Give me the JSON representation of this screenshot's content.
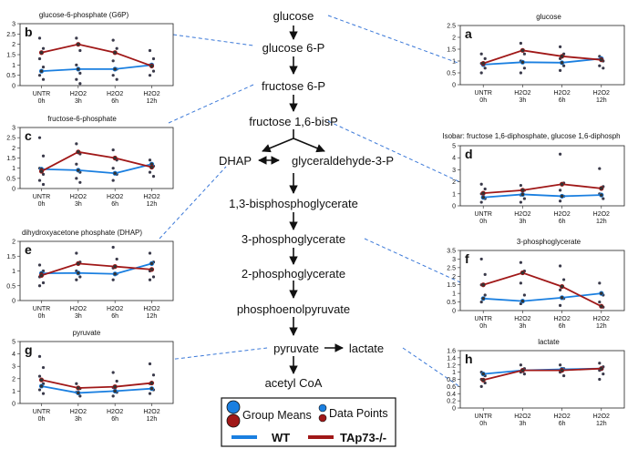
{
  "pathway": {
    "nodes": [
      {
        "id": "glucose",
        "label": "glucose"
      },
      {
        "id": "g6p",
        "label": "glucose 6-P"
      },
      {
        "id": "f6p",
        "label": "fructose 6-P"
      },
      {
        "id": "f16bp",
        "label": "fructose 1,6-bisP"
      },
      {
        "id": "dhap",
        "label": "DHAP"
      },
      {
        "id": "g3p",
        "label": "glyceraldehyde-3-P"
      },
      {
        "id": "bpg",
        "label": "1,3-bisphosphoglycerate"
      },
      {
        "id": "pg3",
        "label": "3-phosphoglycerate"
      },
      {
        "id": "pg2",
        "label": "2-phosphoglycerate"
      },
      {
        "id": "pep",
        "label": "phosphoenolpyruvate"
      },
      {
        "id": "pyr",
        "label": "pyruvate"
      },
      {
        "id": "lac",
        "label": "lactate"
      },
      {
        "id": "acoa",
        "label": "acetyl CoA"
      }
    ]
  },
  "legend": {
    "group_means": "Group Means",
    "data_points": "Data Points",
    "wt": "WT",
    "ko": "TAp73-/-"
  },
  "colors": {
    "wt": "#1a7fe0",
    "ko": "#a01818",
    "points": "#3a3a4a",
    "connector": "#3a78d8"
  },
  "chart_data": [
    {
      "panel": "b",
      "title": "glucose-6-phosphate (G6P)",
      "type": "line",
      "categories": [
        "UNTR|0h",
        "H2O2|3h",
        "H2O2|6h",
        "H2O2|12h"
      ],
      "yticks": [
        "0",
        "0.5",
        "1",
        "1.5",
        "2",
        "2.5",
        "3"
      ],
      "ylim": [
        0,
        3
      ],
      "series": [
        {
          "name": "WT",
          "values": [
            0.7,
            0.8,
            0.8,
            1.0
          ]
        },
        {
          "name": "TAp73-/-",
          "values": [
            1.6,
            2.0,
            1.6,
            0.95
          ]
        }
      ],
      "points": [
        [
          2.3,
          1.8,
          1.3,
          0.9,
          0.5,
          0.3
        ],
        [
          2.3,
          1.7,
          1.0,
          0.6,
          0.3,
          0.1
        ],
        [
          2.2,
          1.8,
          1.2,
          0.8,
          0.5,
          0.3
        ],
        [
          1.7,
          1.3,
          1.0,
          0.7,
          0.5
        ]
      ]
    },
    {
      "panel": "a",
      "title": "glucose",
      "type": "line",
      "categories": [
        "UNTR|0h",
        "H2O2|3h",
        "H2O2|6h",
        "H2O2|12h"
      ],
      "yticks": [
        "0",
        "0.5",
        "1",
        "1.5",
        "2",
        "2.5"
      ],
      "ylim": [
        0,
        2.5
      ],
      "series": [
        {
          "name": "WT",
          "values": [
            0.85,
            0.95,
            0.93,
            1.1
          ]
        },
        {
          "name": "TAp73-/-",
          "values": [
            0.9,
            1.45,
            1.2,
            1.05
          ]
        }
      ],
      "points": [
        [
          1.3,
          1.1,
          0.9,
          0.7,
          0.5
        ],
        [
          1.75,
          1.3,
          1.0,
          0.7,
          0.5
        ],
        [
          1.6,
          1.3,
          1.1,
          0.8,
          0.6
        ],
        [
          1.2,
          1.0,
          0.8,
          0.7
        ]
      ]
    },
    {
      "panel": "c",
      "title": "fructose-6-phosphate",
      "type": "line",
      "categories": [
        "UNTR|0h",
        "H2O2|3h",
        "H2O2|6h",
        "H2O2|12h"
      ],
      "yticks": [
        "0",
        "0.5",
        "1",
        "1.5",
        "2",
        "2.5",
        "3"
      ],
      "ylim": [
        0,
        3
      ],
      "series": [
        {
          "name": "WT",
          "values": [
            0.95,
            0.9,
            0.75,
            1.2
          ]
        },
        {
          "name": "TAp73-/-",
          "values": [
            0.85,
            1.8,
            1.5,
            1.05
          ]
        }
      ],
      "points": [
        [
          2.5,
          1.6,
          1.0,
          0.7,
          0.4,
          0.2
        ],
        [
          2.2,
          1.7,
          1.2,
          0.8,
          0.5,
          0.3
        ],
        [
          1.9,
          1.4,
          1.0,
          0.7,
          0.4
        ],
        [
          1.4,
          1.1,
          0.8,
          0.6
        ]
      ]
    },
    {
      "panel": "d",
      "title": "Isobar: fructose 1,6-diphosphate, glucose 1,6-diphosph",
      "type": "line",
      "categories": [
        "UNTR|0h",
        "H2O2|3h",
        "H2O2|6h",
        "H2O2|12h"
      ],
      "yticks": [
        "0",
        "1",
        "2",
        "3",
        "4",
        "5"
      ],
      "ylim": [
        0,
        5
      ],
      "series": [
        {
          "name": "WT",
          "values": [
            0.7,
            0.95,
            0.8,
            0.9
          ]
        },
        {
          "name": "TAp73-/-",
          "values": [
            1.05,
            1.3,
            1.8,
            1.45
          ]
        }
      ],
      "points": [
        [
          1.8,
          1.4,
          1.0,
          0.6,
          0.3
        ],
        [
          1.7,
          1.3,
          0.9,
          0.6,
          0.3
        ],
        [
          4.3,
          1.9,
          1.3,
          0.8,
          0.4
        ],
        [
          3.1,
          1.6,
          1.0,
          0.6
        ]
      ]
    },
    {
      "panel": "e",
      "title": "dihydroxyacetone phosphate (DHAP)",
      "type": "line",
      "categories": [
        "UNTR|0h",
        "H2O2|3h",
        "H2O2|6h",
        "H2O2|12h"
      ],
      "yticks": [
        "0",
        "0.5",
        "1",
        "1.5",
        "2"
      ],
      "ylim": [
        0,
        2
      ],
      "series": [
        {
          "name": "WT",
          "values": [
            0.92,
            0.93,
            0.9,
            1.25
          ]
        },
        {
          "name": "TAp73-/-",
          "values": [
            0.85,
            1.25,
            1.15,
            1.05
          ]
        }
      ],
      "points": [
        [
          1.2,
          1.0,
          0.8,
          0.6,
          0.5
        ],
        [
          1.6,
          1.3,
          1.0,
          0.8,
          0.7
        ],
        [
          1.8,
          1.4,
          1.1,
          0.9,
          0.7
        ],
        [
          1.6,
          1.3,
          1.0,
          0.8,
          0.7
        ]
      ]
    },
    {
      "panel": "f",
      "title": "3-phosphoglycerate",
      "type": "line",
      "categories": [
        "UNTR|0h",
        "H2O2|3h",
        "H2O2|6h",
        "H2O2|12h"
      ],
      "yticks": [
        "0",
        "0.5",
        "1",
        "1.5",
        "2",
        "2.5",
        "3",
        "3.5"
      ],
      "ylim": [
        0,
        3.5
      ],
      "series": [
        {
          "name": "WT",
          "values": [
            0.7,
            0.55,
            0.75,
            1.0
          ]
        },
        {
          "name": "TAp73-/-",
          "values": [
            1.5,
            2.2,
            1.4,
            0.25
          ]
        }
      ],
      "points": [
        [
          3.0,
          2.1,
          1.5,
          0.9,
          0.5
        ],
        [
          2.8,
          2.3,
          1.6,
          0.9,
          0.4
        ],
        [
          2.6,
          1.8,
          1.2,
          0.7,
          0.3
        ],
        [
          1.6,
          0.9,
          0.5,
          0.2
        ]
      ]
    },
    {
      "panel": "g",
      "title": "pyruvate",
      "type": "line",
      "categories": [
        "UNTR|0h",
        "H2O2|3h",
        "H2O2|6h",
        "H2O2|12h"
      ],
      "yticks": [
        "0",
        "1",
        "2",
        "3",
        "4",
        "5"
      ],
      "ylim": [
        0,
        5
      ],
      "series": [
        {
          "name": "WT",
          "values": [
            1.4,
            0.85,
            1.0,
            1.2
          ]
        },
        {
          "name": "TAp73-/-",
          "values": [
            1.9,
            1.25,
            1.35,
            1.65
          ]
        }
      ],
      "points": [
        [
          3.8,
          2.9,
          2.2,
          1.6,
          1.1,
          0.8
        ],
        [
          1.6,
          1.2,
          0.9,
          0.6
        ],
        [
          2.5,
          1.8,
          1.3,
          0.9,
          0.6
        ],
        [
          3.2,
          2.3,
          1.6,
          1.1,
          0.8
        ]
      ]
    },
    {
      "panel": "h",
      "title": "lactate",
      "type": "line",
      "categories": [
        "UNTR|0h",
        "H2O2|3h",
        "H2O2|6h",
        "H2O2|12h"
      ],
      "yticks": [
        "0",
        "0.2",
        "0.4",
        "0.6",
        "0.8",
        "1",
        "1.2",
        "1.4",
        "1.6"
      ],
      "ylim": [
        0,
        1.6
      ],
      "series": [
        {
          "name": "WT",
          "values": [
            0.95,
            1.05,
            1.08,
            1.1
          ]
        },
        {
          "name": "TAp73-/-",
          "values": [
            0.78,
            1.05,
            1.05,
            1.1
          ]
        }
      ],
      "points": [
        [
          1.0,
          0.9,
          0.8,
          0.7,
          0.6
        ],
        [
          1.2,
          1.1,
          1.0,
          0.95
        ],
        [
          1.2,
          1.1,
          1.0,
          0.9
        ],
        [
          1.25,
          1.15,
          1.05,
          0.95,
          0.8
        ]
      ]
    }
  ]
}
